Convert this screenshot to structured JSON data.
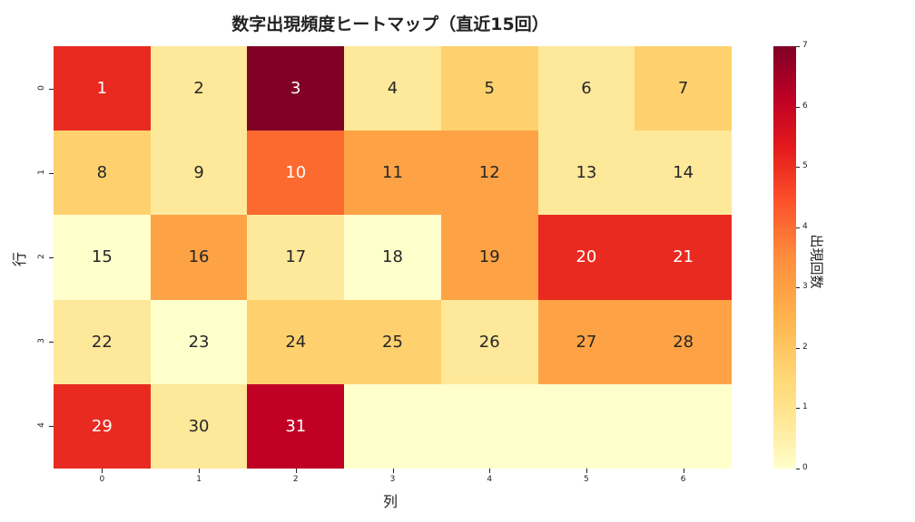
{
  "chart_data": {
    "type": "heatmap",
    "title": "数字出現頻度ヒートマップ（直近15回）",
    "xlabel": "列",
    "ylabel": "行",
    "x_ticks": [
      "0",
      "1",
      "2",
      "3",
      "4",
      "5",
      "6"
    ],
    "y_ticks": [
      "0",
      "1",
      "2",
      "3",
      "4"
    ],
    "colormap": "YlOrRd",
    "colorbar": {
      "label": "出現回数",
      "range": [
        0,
        7
      ],
      "ticks": [
        "0",
        "1",
        "2",
        "3",
        "4",
        "5",
        "6",
        "7"
      ]
    },
    "annotations": [
      [
        "1",
        "2",
        "3",
        "4",
        "5",
        "6",
        "7"
      ],
      [
        "8",
        "9",
        "10",
        "11",
        "12",
        "13",
        "14"
      ],
      [
        "15",
        "16",
        "17",
        "18",
        "19",
        "20",
        "21"
      ],
      [
        "22",
        "23",
        "24",
        "25",
        "26",
        "27",
        "28"
      ],
      [
        "29",
        "30",
        "31",
        "",
        "",
        "",
        ""
      ]
    ],
    "values": [
      [
        5,
        1,
        7,
        1,
        2,
        1,
        2
      ],
      [
        2,
        1,
        4,
        3,
        3,
        1,
        1
      ],
      [
        0,
        3,
        1,
        0,
        3,
        5,
        5
      ],
      [
        1,
        0,
        2,
        2,
        1,
        3,
        3
      ],
      [
        5,
        1,
        6,
        0,
        0,
        0,
        0
      ]
    ],
    "colors": [
      [
        "#e82a20",
        "#fee89a",
        "#800026",
        "#fee89a",
        "#fed16e",
        "#fee89a",
        "#fed16e"
      ],
      [
        "#fed16e",
        "#fee89a",
        "#fd6a30",
        "#fea345",
        "#fea345",
        "#fee89a",
        "#fee89a"
      ],
      [
        "#ffffcc",
        "#fea345",
        "#fee89a",
        "#ffffcc",
        "#fea345",
        "#e82a20",
        "#e82a20"
      ],
      [
        "#fee89a",
        "#ffffcc",
        "#fed16e",
        "#fed16e",
        "#fee89a",
        "#fea345",
        "#fea345"
      ],
      [
        "#e82a20",
        "#fee89a",
        "#c10026",
        "#ffffcc",
        "#ffffcc",
        "#ffffcc",
        "#ffffcc"
      ]
    ]
  }
}
